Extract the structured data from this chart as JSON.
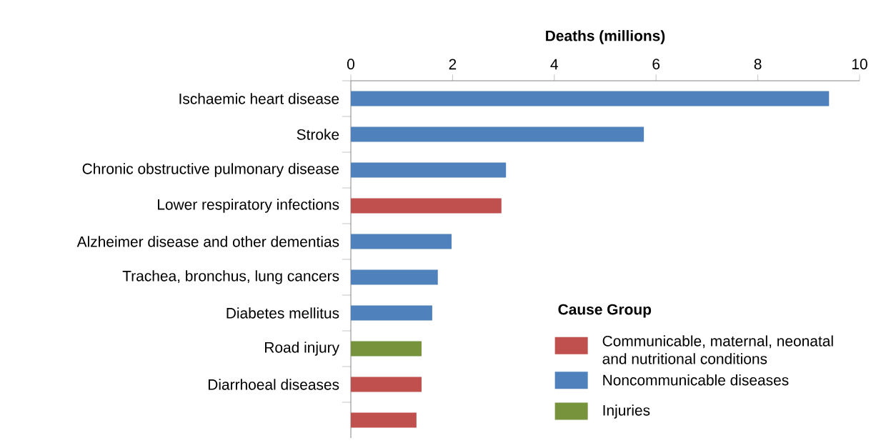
{
  "chart_data": {
    "type": "bar",
    "orientation": "horizontal",
    "xlabel": "Deaths (millions)",
    "legend_title": "Cause Group",
    "legend": "bottom right",
    "categories": [
      "Ischaemic heart disease",
      "Stroke",
      "Chronic obstructive pulmonary disease",
      "Lower respiratory infections",
      "Alzheimer disease and other dementias",
      "Trachea, bronchus, lung cancers",
      "Diabetes mellitus",
      "Road injury",
      "Diarrhoeal diseases",
      null
    ],
    "xlim": [
      0,
      10
    ],
    "xticks": [
      0,
      2,
      4,
      6,
      8,
      10
    ],
    "series": [
      {
        "name": "Communicable, maternal, neonatal and nutritional conditions",
        "color": "#c0504d",
        "values": [
          null,
          null,
          null,
          2.96,
          null,
          null,
          null,
          null,
          1.39,
          1.29
        ]
      },
      {
        "name": "Noncommunicable diseases",
        "color": "#4f81bd",
        "values": [
          9.4,
          5.76,
          3.05,
          null,
          1.98,
          1.71,
          1.6,
          null,
          null,
          null
        ]
      },
      {
        "name": "Injuries",
        "color": "#77933c",
        "values": [
          null,
          null,
          null,
          null,
          null,
          null,
          null,
          1.39,
          null,
          null
        ]
      }
    ]
  }
}
